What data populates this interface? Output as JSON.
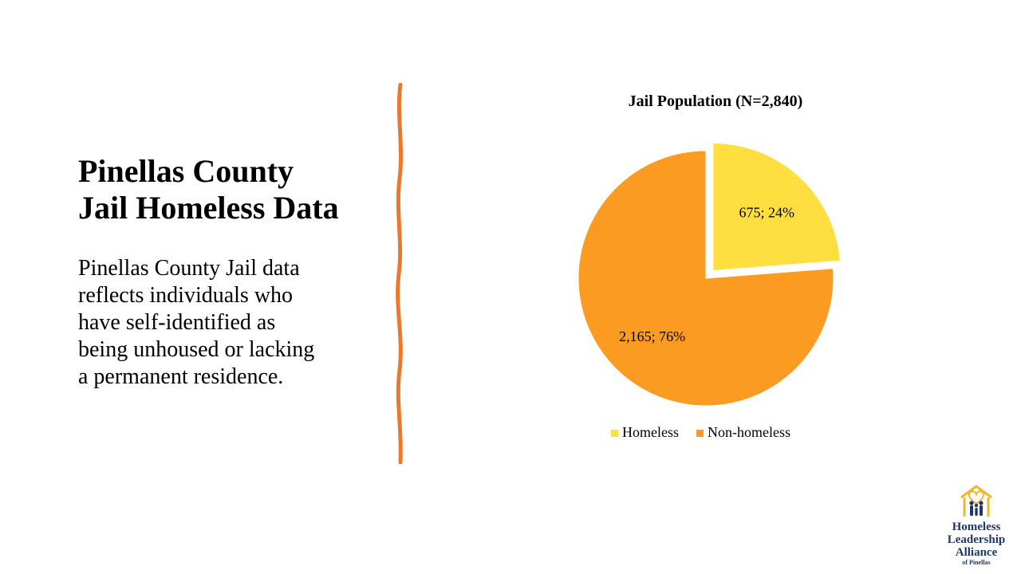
{
  "slide": {
    "title_lines": [
      "Pinellas County",
      "Jail Homeless Data"
    ],
    "body_lines": [
      "Pinellas County Jail data",
      "reflects individuals who",
      "have self-identified as",
      "being unhoused or lacking",
      "a permanent residence."
    ]
  },
  "chart_data": {
    "type": "pie",
    "title": "Jail Population (N=2,840)",
    "slices": [
      {
        "name": "Homeless",
        "value": 675,
        "percent": 24,
        "label": "675; 24%",
        "color": "#ffde3f",
        "exploded": true
      },
      {
        "name": "Non-homeless",
        "value": 2165,
        "percent": 76,
        "label": "2,165; 76%",
        "color": "#fb9b22",
        "exploded": false
      }
    ],
    "legend_position": "bottom"
  },
  "colors": {
    "divider": "#e97a2c",
    "logo_navy": "#1f3768",
    "logo_gold": "#f0b630"
  },
  "logo": {
    "lines": [
      "Homeless",
      "Leadership",
      "Alliance",
      "of Pinellas"
    ],
    "icon": "house-heart-family-icon"
  }
}
